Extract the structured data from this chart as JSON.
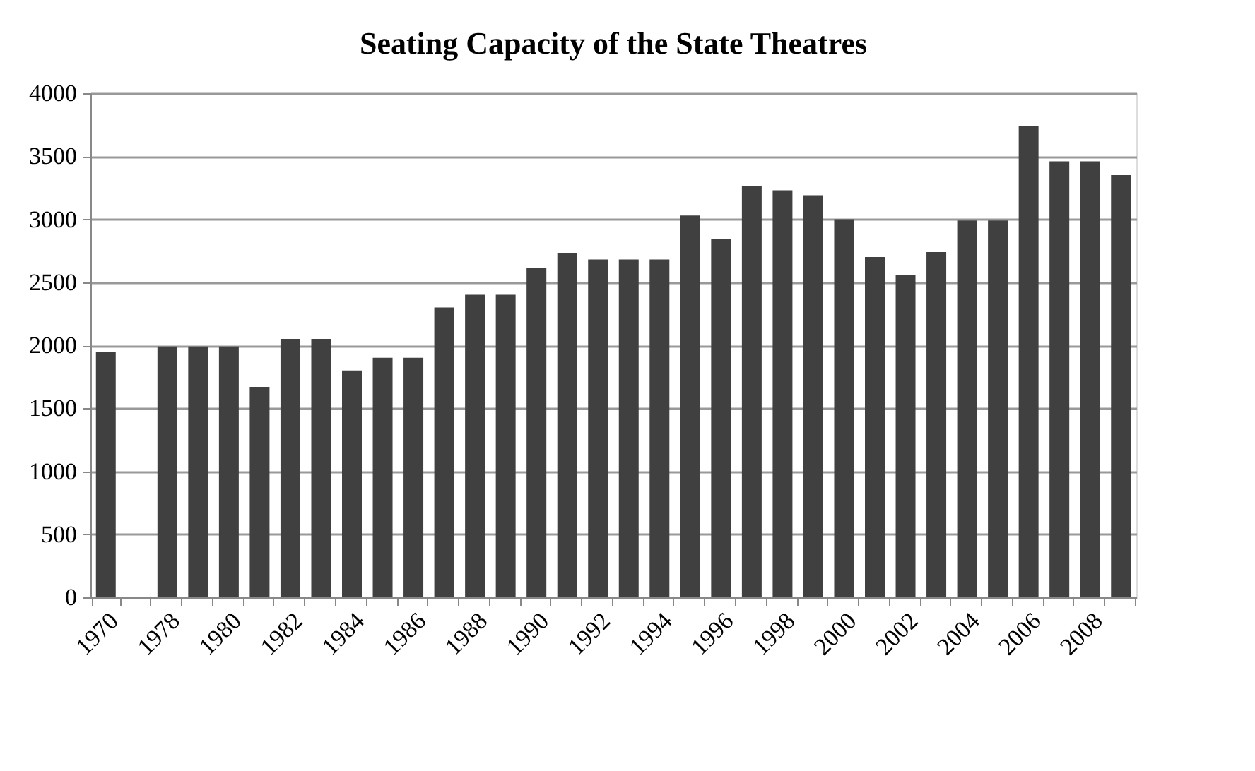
{
  "chart_data": {
    "type": "bar",
    "title": "Seating Capacity of the State Theatres",
    "categories": [
      "1970",
      null,
      "1978",
      null,
      "1980",
      null,
      "1982",
      null,
      "1984",
      null,
      "1986",
      null,
      "1988",
      null,
      "1990",
      null,
      "1992",
      null,
      "1994",
      null,
      "1996",
      null,
      "1998",
      null,
      "2000",
      null,
      "2002",
      null,
      "2004",
      null,
      "2006",
      null,
      "2008",
      null
    ],
    "values": [
      1950,
      null,
      1990,
      1990,
      1990,
      1670,
      2050,
      2050,
      1800,
      1900,
      1900,
      2300,
      2400,
      2400,
      2610,
      2730,
      2680,
      2680,
      2680,
      3030,
      2840,
      3260,
      3230,
      3190,
      3000,
      2700,
      2560,
      2740,
      2990,
      2990,
      3740,
      3460,
      3460,
      3350
    ],
    "color": "#404040",
    "ylim": [
      0,
      4000
    ],
    "yticks": [
      0,
      500,
      1000,
      1500,
      2000,
      2500,
      3000,
      3500,
      4000
    ],
    "grid": "y"
  }
}
